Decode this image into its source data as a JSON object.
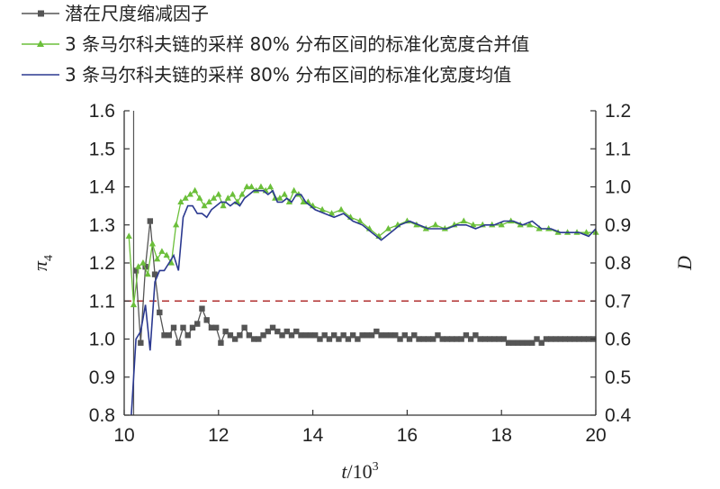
{
  "chart_data": {
    "type": "line",
    "legend": [
      {
        "name": "潜在尺度缩减因子",
        "color": "#555555",
        "marker": "square"
      },
      {
        "name": "3 条马尔科夫链的采样 80% 分布区间的标准化宽度合并值",
        "color": "#6bbf3a",
        "marker": "triangle"
      },
      {
        "name": "3 条马尔科夫链的采样 80% 分布区间的标准化宽度均值",
        "color": "#2b3990",
        "marker": "none"
      }
    ],
    "legend_placement": "top-left",
    "xlabel_main": "t",
    "xlabel_sep": "/10",
    "xlabel_exp": "3",
    "ylabel_left_main": "π",
    "ylabel_left_sub": "4",
    "ylabel_right": "D",
    "xlim": [
      10,
      20
    ],
    "ylim_left": [
      0.8,
      1.6
    ],
    "ylim_right": [
      0.4,
      1.2
    ],
    "x_ticks": [
      "10",
      "12",
      "14",
      "16",
      "18",
      "20"
    ],
    "y_left_ticks": [
      "0.8",
      "0.9",
      "1.0",
      "1.1",
      "1.2",
      "1.3",
      "1.4",
      "1.5",
      "1.6"
    ],
    "y_right_ticks": [
      "0.4",
      "0.5",
      "0.6",
      "0.7",
      "0.8",
      "0.9",
      "1.0",
      "1.1",
      "1.2"
    ],
    "reference_line": {
      "axis": "left",
      "y": 1.1,
      "color": "#b03030",
      "style": "dashed"
    },
    "series": [
      {
        "name": "潜在尺度缩减因子",
        "axis": "left",
        "color": "#555555",
        "marker": "square",
        "x": [
          10.25,
          10.35,
          10.45,
          10.55,
          10.65,
          10.75,
          10.85,
          10.95,
          11.05,
          11.15,
          11.25,
          11.35,
          11.45,
          11.55,
          11.65,
          11.75,
          11.85,
          11.95,
          12.05,
          12.15,
          12.25,
          12.35,
          12.45,
          12.55,
          12.65,
          12.75,
          12.85,
          12.95,
          13.05,
          13.15,
          13.25,
          13.35,
          13.45,
          13.55,
          13.65,
          13.75,
          13.85,
          13.95,
          14.05,
          14.15,
          14.25,
          14.35,
          14.45,
          14.55,
          14.65,
          14.75,
          14.85,
          14.95,
          15.05,
          15.15,
          15.25,
          15.35,
          15.45,
          15.55,
          15.65,
          15.75,
          15.85,
          15.95,
          16.05,
          16.15,
          16.25,
          16.35,
          16.45,
          16.55,
          16.65,
          16.75,
          16.85,
          16.95,
          17.05,
          17.15,
          17.25,
          17.35,
          17.45,
          17.55,
          17.65,
          17.75,
          17.85,
          17.95,
          18.05,
          18.15,
          18.25,
          18.35,
          18.45,
          18.55,
          18.65,
          18.75,
          18.85,
          18.95,
          19.05,
          19.15,
          19.25,
          19.35,
          19.45,
          19.55,
          19.65,
          19.75,
          19.85,
          19.95
        ],
        "y": [
          1.18,
          0.99,
          1.19,
          1.31,
          1.17,
          1.07,
          1.01,
          1.01,
          1.03,
          0.99,
          1.03,
          1.01,
          1.03,
          1.04,
          1.08,
          1.05,
          1.03,
          1.03,
          0.99,
          1.02,
          1.01,
          1.0,
          1.01,
          1.03,
          1.01,
          1.0,
          1.0,
          1.01,
          1.02,
          1.03,
          1.02,
          1.01,
          1.02,
          1.01,
          1.02,
          1.01,
          1.01,
          1.01,
          1.01,
          1.0,
          1.01,
          1.0,
          1.01,
          1.0,
          1.01,
          1.0,
          1.01,
          1.0,
          1.01,
          1.01,
          1.01,
          1.02,
          1.01,
          1.01,
          1.01,
          1.01,
          1.0,
          1.01,
          1.0,
          1.01,
          1.0,
          1.0,
          1.0,
          1.0,
          1.01,
          1.0,
          1.0,
          1.0,
          1.0,
          1.0,
          1.01,
          1.0,
          1.01,
          1.0,
          1.0,
          1.0,
          1.0,
          1.0,
          1.0,
          0.99,
          0.99,
          0.99,
          0.99,
          0.99,
          0.99,
          1.0,
          0.99,
          1.0,
          1.0,
          1.0,
          1.0,
          1.0,
          1.0,
          1.0,
          1.0,
          1.0,
          1.0,
          1.0
        ]
      },
      {
        "name": "3 条马尔科夫链的采样 80% 分布区间的标准化宽度合并值",
        "axis": "right",
        "color": "#6bbf3a",
        "marker": "triangle",
        "x": [
          10.1,
          10.2,
          10.3,
          10.4,
          10.5,
          10.6,
          10.7,
          10.8,
          10.9,
          11.0,
          11.1,
          11.2,
          11.3,
          11.4,
          11.5,
          11.6,
          11.7,
          11.8,
          11.9,
          12.0,
          12.1,
          12.2,
          12.3,
          12.4,
          12.5,
          12.6,
          12.7,
          12.8,
          12.9,
          13.0,
          13.1,
          13.2,
          13.3,
          13.4,
          13.5,
          13.6,
          13.7,
          13.8,
          13.9,
          14.0,
          14.2,
          14.4,
          14.6,
          14.8,
          15.0,
          15.2,
          15.4,
          15.6,
          15.8,
          16.0,
          16.2,
          16.4,
          16.6,
          16.8,
          17.0,
          17.2,
          17.4,
          17.6,
          17.8,
          18.0,
          18.2,
          18.4,
          18.6,
          18.8,
          19.0,
          19.2,
          19.4,
          19.6,
          19.8,
          20.0
        ],
        "y": [
          0.87,
          0.69,
          0.79,
          0.8,
          0.77,
          0.85,
          0.81,
          0.83,
          0.82,
          0.8,
          0.9,
          0.96,
          0.97,
          0.98,
          0.99,
          0.97,
          0.95,
          0.96,
          0.97,
          0.98,
          0.95,
          0.97,
          0.98,
          0.96,
          0.98,
          1.0,
          1.0,
          0.99,
          1.0,
          0.99,
          1.0,
          0.97,
          0.97,
          0.98,
          0.96,
          0.99,
          0.98,
          0.96,
          0.96,
          0.95,
          0.94,
          0.93,
          0.94,
          0.92,
          0.91,
          0.89,
          0.87,
          0.89,
          0.9,
          0.91,
          0.9,
          0.89,
          0.9,
          0.89,
          0.9,
          0.91,
          0.9,
          0.9,
          0.9,
          0.9,
          0.91,
          0.9,
          0.9,
          0.89,
          0.89,
          0.88,
          0.88,
          0.88,
          0.88,
          0.88
        ]
      },
      {
        "name": "3 条马尔科夫链的采样 80% 分布区间的标准化宽度均值",
        "axis": "right",
        "color": "#2b3990",
        "marker": "none",
        "x": [
          10.15,
          10.25,
          10.35,
          10.45,
          10.55,
          10.65,
          10.75,
          10.85,
          10.95,
          11.05,
          11.15,
          11.25,
          11.35,
          11.45,
          11.55,
          11.65,
          11.75,
          11.85,
          11.95,
          12.05,
          12.15,
          12.25,
          12.35,
          12.45,
          12.55,
          12.65,
          12.75,
          12.85,
          12.95,
          13.05,
          13.15,
          13.25,
          13.35,
          13.45,
          13.55,
          13.65,
          13.75,
          13.85,
          13.95,
          14.05,
          14.25,
          14.45,
          14.65,
          14.85,
          15.05,
          15.25,
          15.45,
          15.65,
          15.85,
          16.05,
          16.25,
          16.45,
          16.65,
          16.85,
          17.05,
          17.25,
          17.45,
          17.65,
          17.85,
          18.05,
          18.25,
          18.45,
          18.65,
          18.85,
          19.05,
          19.25,
          19.45,
          19.65,
          19.85,
          20.0
        ],
        "y": [
          0.4,
          0.6,
          0.62,
          0.69,
          0.57,
          0.75,
          0.78,
          0.78,
          0.8,
          0.82,
          0.78,
          0.92,
          0.95,
          0.95,
          0.93,
          0.93,
          0.92,
          0.94,
          0.95,
          0.96,
          0.96,
          0.95,
          0.96,
          0.95,
          0.97,
          0.98,
          0.99,
          0.99,
          0.99,
          0.98,
          0.99,
          0.96,
          0.96,
          0.97,
          0.96,
          0.98,
          0.98,
          0.96,
          0.95,
          0.94,
          0.93,
          0.92,
          0.93,
          0.91,
          0.9,
          0.88,
          0.86,
          0.88,
          0.9,
          0.91,
          0.9,
          0.89,
          0.89,
          0.89,
          0.9,
          0.9,
          0.89,
          0.9,
          0.9,
          0.91,
          0.91,
          0.9,
          0.91,
          0.89,
          0.89,
          0.88,
          0.88,
          0.88,
          0.87,
          0.89
        ]
      }
    ]
  }
}
